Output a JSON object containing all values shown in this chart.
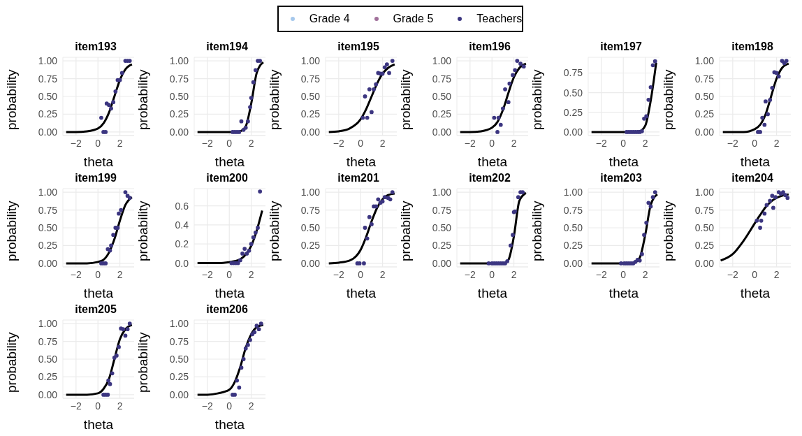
{
  "chart_data": [
    {
      "type": "scatter",
      "title": "item193",
      "xlabel": "theta",
      "ylabel": "probability",
      "xlim": [
        -3.2,
        3.3
      ],
      "xticks": [
        {
          "value": -2,
          "label": "−2"
        },
        {
          "value": 0,
          "label": "0"
        },
        {
          "value": 2,
          "label": "2"
        }
      ],
      "ylim": [
        -0.05,
        1.05
      ],
      "yticks": [
        {
          "value": 0,
          "label": "0.00"
        },
        {
          "value": 0.25,
          "label": "0.25"
        },
        {
          "value": 0.5,
          "label": "0.50"
        },
        {
          "value": 0.75,
          "label": "0.75"
        },
        {
          "value": 1,
          "label": "1.00"
        }
      ],
      "grid": true,
      "legend": "top",
      "series": [
        {
          "name": "Grade 4",
          "color": "#a6c8ec",
          "marker": "circle"
        },
        {
          "name": "Grade 5",
          "color": "#a0709a",
          "marker": "circle"
        },
        {
          "type": "line",
          "marker": "none",
          "color": "#000000",
          "x": [
            -2.9,
            -2,
            -1,
            0,
            0.5,
            1,
            1.5,
            2,
            2.5,
            3.1
          ],
          "values": [
            0,
            0,
            0.01,
            0.05,
            0.12,
            0.27,
            0.5,
            0.73,
            0.88,
            0.95
          ]
        },
        {
          "name": "Teachers",
          "marker": "circle",
          "color": "#3b3580",
          "x": [
            0.3,
            0.5,
            0.7,
            0.8,
            1.0,
            1.2,
            1.4,
            1.6,
            1.8,
            2.0,
            2.2,
            2.5,
            2.7,
            2.9
          ],
          "values": [
            0.2,
            0,
            0,
            0.4,
            0.38,
            0.33,
            0.42,
            0.57,
            0.73,
            0.73,
            0.83,
            1,
            1,
            1
          ]
        }
      ]
    },
    {
      "type": "scatter",
      "title": "item194",
      "xlabel": "theta",
      "ylabel": "probability",
      "xlim": [
        -3.2,
        3.3
      ],
      "xticks": [
        {
          "value": -2,
          "label": "−2"
        },
        {
          "value": 0,
          "label": "0"
        },
        {
          "value": 2,
          "label": "2"
        }
      ],
      "ylim": [
        -0.05,
        1.05
      ],
      "yticks": [
        {
          "value": 0,
          "label": "0.00"
        },
        {
          "value": 0.25,
          "label": "0.25"
        },
        {
          "value": 0.5,
          "label": "0.50"
        },
        {
          "value": 0.75,
          "label": "0.75"
        },
        {
          "value": 1,
          "label": "1.00"
        }
      ],
      "grid": true,
      "series": [
        {
          "type": "line",
          "marker": "none",
          "color": "#000000",
          "x": [
            -2.9,
            -2,
            -1,
            0,
            0.5,
            1,
            1.5,
            2,
            2.5,
            3.1
          ],
          "values": [
            0,
            0,
            0,
            0,
            0,
            0.01,
            0.08,
            0.4,
            0.83,
            0.98
          ]
        },
        {
          "marker": "circle",
          "color": "#3b3580",
          "x": [
            0.3,
            0.5,
            0.7,
            0.9,
            1.1,
            1.3,
            1.5,
            1.7,
            1.9,
            2.0,
            2.2,
            2.4,
            2.6,
            2.8
          ],
          "values": [
            0,
            0,
            0,
            0,
            0.15,
            0.03,
            0.06,
            0.15,
            0.35,
            0.48,
            0.7,
            0.87,
            1,
            1
          ]
        }
      ]
    },
    {
      "type": "scatter",
      "title": "item195",
      "xlabel": "theta",
      "ylabel": "probability",
      "xlim": [
        -3.2,
        3.3
      ],
      "xticks": [
        {
          "value": -2,
          "label": "−2"
        },
        {
          "value": 0,
          "label": "0"
        },
        {
          "value": 2,
          "label": "2"
        }
      ],
      "ylim": [
        -0.05,
        1.05
      ],
      "yticks": [
        {
          "value": 0,
          "label": "0.00"
        },
        {
          "value": 0.25,
          "label": "0.25"
        },
        {
          "value": 0.5,
          "label": "0.50"
        },
        {
          "value": 0.75,
          "label": "0.75"
        },
        {
          "value": 1,
          "label": "1.00"
        }
      ],
      "grid": true,
      "series": [
        {
          "type": "line",
          "marker": "none",
          "color": "#000000",
          "x": [
            -2.9,
            -2,
            -1,
            0,
            0.5,
            1,
            1.5,
            2,
            2.5,
            3.1
          ],
          "values": [
            0,
            0.01,
            0.05,
            0.18,
            0.32,
            0.5,
            0.68,
            0.82,
            0.9,
            0.95
          ]
        },
        {
          "marker": "circle",
          "color": "#3b3580",
          "x": [
            0.2,
            0.4,
            0.6,
            0.8,
            1.0,
            1.2,
            1.4,
            1.6,
            1.8,
            2.0,
            2.2,
            2.4,
            2.6,
            2.9
          ],
          "values": [
            0.2,
            0.5,
            0.2,
            0.6,
            0.28,
            0.6,
            0.67,
            0.83,
            0.82,
            0.82,
            0.91,
            0.95,
            0.83,
            1
          ]
        }
      ]
    },
    {
      "type": "scatter",
      "title": "item196",
      "xlabel": "theta",
      "ylabel": "probability",
      "xlim": [
        -3.2,
        3.3
      ],
      "xticks": [
        {
          "value": -2,
          "label": "−2"
        },
        {
          "value": 0,
          "label": "0"
        },
        {
          "value": 2,
          "label": "2"
        }
      ],
      "ylim": [
        -0.05,
        1.05
      ],
      "yticks": [
        {
          "value": 0,
          "label": "0.00"
        },
        {
          "value": 0.25,
          "label": "0.25"
        },
        {
          "value": 0.5,
          "label": "0.50"
        },
        {
          "value": 0.75,
          "label": "0.75"
        },
        {
          "value": 1,
          "label": "1.00"
        }
      ],
      "grid": true,
      "series": [
        {
          "type": "line",
          "marker": "none",
          "color": "#000000",
          "x": [
            -2.9,
            -2,
            -1,
            0,
            0.5,
            1,
            1.5,
            2,
            2.5,
            3.1
          ],
          "values": [
            0,
            0,
            0.01,
            0.06,
            0.14,
            0.31,
            0.55,
            0.77,
            0.9,
            0.96
          ]
        },
        {
          "marker": "circle",
          "color": "#3b3580",
          "x": [
            0.2,
            0.5,
            0.6,
            0.8,
            1.0,
            1.2,
            1.5,
            1.6,
            1.9,
            2.1,
            2.3,
            2.6,
            2.9
          ],
          "values": [
            0.2,
            0,
            0.2,
            0.1,
            0.33,
            0.6,
            0.42,
            0.68,
            0.8,
            0.87,
            1,
            0.96,
            0.92
          ]
        }
      ]
    },
    {
      "type": "scatter",
      "title": "item197",
      "xlabel": "theta",
      "ylabel": "probability",
      "xlim": [
        -3.2,
        3.3
      ],
      "xticks": [
        {
          "value": -2,
          "label": "−2"
        },
        {
          "value": 0,
          "label": "0"
        },
        {
          "value": 2,
          "label": "2"
        }
      ],
      "ylim": [
        -0.045,
        0.95
      ],
      "yticks": [
        {
          "value": 0,
          "label": "0.00"
        },
        {
          "value": 0.25,
          "label": "0.25"
        },
        {
          "value": 0.5,
          "label": "0.50"
        },
        {
          "value": 0.75,
          "label": "0.75"
        }
      ],
      "grid": true,
      "series": [
        {
          "type": "line",
          "marker": "none",
          "color": "#000000",
          "x": [
            -2.9,
            -2,
            -1,
            0,
            0.5,
            1,
            1.5,
            2,
            2.5,
            3.0
          ],
          "values": [
            0,
            0,
            0,
            0,
            0,
            0,
            0.01,
            0.08,
            0.4,
            0.88
          ]
        },
        {
          "marker": "circle",
          "color": "#3b3580",
          "x": [
            0.3,
            0.5,
            0.7,
            0.9,
            1.1,
            1.3,
            1.5,
            1.7,
            1.9,
            2.1,
            2.3,
            2.5,
            2.7,
            2.9
          ],
          "values": [
            0,
            0,
            0,
            0,
            0,
            0,
            0,
            0.01,
            0.17,
            0.2,
            0.41,
            0.57,
            0.85,
            0.9
          ]
        }
      ]
    },
    {
      "type": "scatter",
      "title": "item198",
      "xlabel": "theta",
      "ylabel": "probability",
      "xlim": [
        -3.2,
        3.3
      ],
      "xticks": [
        {
          "value": -2,
          "label": "−2"
        },
        {
          "value": 0,
          "label": "0"
        },
        {
          "value": 2,
          "label": "2"
        }
      ],
      "ylim": [
        -0.05,
        1.05
      ],
      "yticks": [
        {
          "value": 0,
          "label": "0.00"
        },
        {
          "value": 0.25,
          "label": "0.25"
        },
        {
          "value": 0.5,
          "label": "0.50"
        },
        {
          "value": 0.75,
          "label": "0.75"
        },
        {
          "value": 1,
          "label": "1.00"
        }
      ],
      "grid": true,
      "series": [
        {
          "type": "line",
          "marker": "none",
          "color": "#000000",
          "x": [
            -2.9,
            -2,
            -1,
            0,
            0.5,
            1,
            1.5,
            2,
            2.5,
            3.1
          ],
          "values": [
            0,
            0,
            0,
            0.04,
            0.1,
            0.25,
            0.5,
            0.75,
            0.9,
            0.96
          ]
        },
        {
          "marker": "circle",
          "color": "#3b3580",
          "x": [
            0.3,
            0.5,
            0.7,
            0.9,
            1.0,
            1.2,
            1.4,
            1.6,
            1.8,
            2.0,
            2.2,
            2.5,
            2.7,
            2.9
          ],
          "values": [
            0,
            0,
            0.2,
            0.1,
            0.43,
            0.25,
            0.45,
            0.62,
            0.84,
            0.83,
            0.78,
            1,
            0.97,
            1
          ]
        }
      ]
    },
    {
      "type": "scatter",
      "title": "item199",
      "xlabel": "theta",
      "ylabel": "probability",
      "xlim": [
        -3.2,
        3.3
      ],
      "xticks": [
        {
          "value": -2,
          "label": "−2"
        },
        {
          "value": 0,
          "label": "0"
        },
        {
          "value": 2,
          "label": "2"
        }
      ],
      "ylim": [
        -0.05,
        1.05
      ],
      "yticks": [
        {
          "value": 0,
          "label": "0.00"
        },
        {
          "value": 0.25,
          "label": "0.25"
        },
        {
          "value": 0.5,
          "label": "0.50"
        },
        {
          "value": 0.75,
          "label": "0.75"
        },
        {
          "value": 1,
          "label": "1.00"
        }
      ],
      "grid": true,
      "series": [
        {
          "type": "line",
          "marker": "none",
          "color": "#000000",
          "x": [
            -2.9,
            -2,
            -1,
            0,
            0.5,
            1,
            1.5,
            2,
            2.5,
            3.1
          ],
          "values": [
            0,
            0,
            0,
            0.02,
            0.05,
            0.15,
            0.34,
            0.6,
            0.82,
            0.93
          ]
        },
        {
          "marker": "circle",
          "color": "#3b3580",
          "x": [
            0.3,
            0.5,
            0.7,
            0.9,
            1.1,
            1.2,
            1.4,
            1.6,
            1.8,
            1.9,
            2.1,
            2.5,
            2.7,
            2.9
          ],
          "values": [
            0,
            0,
            0,
            0.2,
            0.18,
            0.25,
            0.4,
            0.5,
            0.5,
            0.7,
            0.75,
            1,
            0.95,
            0.92
          ]
        }
      ]
    },
    {
      "type": "scatter",
      "title": "item200",
      "xlabel": "theta",
      "ylabel": "probability",
      "xlim": [
        -3.2,
        3.3
      ],
      "xticks": [
        {
          "value": -2,
          "label": "−2"
        },
        {
          "value": 0,
          "label": "0"
        },
        {
          "value": 2,
          "label": "2"
        }
      ],
      "ylim": [
        -0.04,
        0.78
      ],
      "yticks": [
        {
          "value": 0,
          "label": "0.0"
        },
        {
          "value": 0.2,
          "label": "0.2"
        },
        {
          "value": 0.4,
          "label": "0.4"
        },
        {
          "value": 0.6,
          "label": "0.6"
        }
      ],
      "grid": true,
      "series": [
        {
          "type": "line",
          "marker": "none",
          "color": "#000000",
          "x": [
            -2.9,
            -2,
            -1,
            0,
            0.5,
            1,
            1.5,
            2,
            2.5,
            3.0
          ],
          "values": [
            0,
            0,
            0,
            0.01,
            0.02,
            0.04,
            0.09,
            0.18,
            0.34,
            0.55
          ]
        },
        {
          "marker": "circle",
          "color": "#3b3580",
          "x": [
            0.2,
            0.4,
            0.6,
            0.8,
            1.0,
            1.2,
            1.4,
            1.6,
            1.8,
            2.0,
            2.2,
            2.4,
            2.6,
            2.8
          ],
          "values": [
            0,
            0,
            0,
            0,
            0.03,
            0.1,
            0.15,
            0.1,
            0.13,
            0.2,
            0.27,
            0.32,
            0.37,
            0.75
          ]
        }
      ]
    },
    {
      "type": "scatter",
      "title": "item201",
      "xlabel": "theta",
      "ylabel": "probability",
      "xlim": [
        -3.2,
        3.3
      ],
      "xticks": [
        {
          "value": -2,
          "label": "−2"
        },
        {
          "value": 0,
          "label": "0"
        },
        {
          "value": 2,
          "label": "2"
        }
      ],
      "ylim": [
        -0.05,
        1.05
      ],
      "yticks": [
        {
          "value": 0,
          "label": "0.00"
        },
        {
          "value": 0.25,
          "label": "0.25"
        },
        {
          "value": 0.5,
          "label": "0.50"
        },
        {
          "value": 0.75,
          "label": "0.75"
        },
        {
          "value": 1,
          "label": "1.00"
        }
      ],
      "grid": true,
      "series": [
        {
          "type": "line",
          "marker": "none",
          "color": "#000000",
          "x": [
            -2.9,
            -2,
            -1,
            0,
            0.5,
            1,
            1.5,
            2,
            2.5,
            3.1
          ],
          "values": [
            0,
            0.01,
            0.04,
            0.19,
            0.37,
            0.59,
            0.78,
            0.9,
            0.96,
            0.98
          ]
        },
        {
          "marker": "circle",
          "color": "#3b3580",
          "x": [
            -0.3,
            -0.1,
            0.3,
            0.4,
            0.6,
            0.8,
            1.0,
            1.2,
            1.4,
            1.6,
            1.8,
            2.0,
            2.2,
            2.5,
            2.7,
            2.9
          ],
          "values": [
            0,
            0,
            0,
            0.5,
            0.35,
            0.65,
            0.55,
            0.8,
            0.8,
            0.9,
            0.85,
            0.87,
            0.93,
            0.92,
            0.9,
            1
          ]
        }
      ]
    },
    {
      "type": "scatter",
      "title": "item202",
      "xlabel": "theta",
      "ylabel": "probability",
      "xlim": [
        -3.2,
        3.3
      ],
      "xticks": [
        {
          "value": -2,
          "label": "−2"
        },
        {
          "value": 0,
          "label": "0"
        },
        {
          "value": 2,
          "label": "2"
        }
      ],
      "ylim": [
        -0.05,
        1.05
      ],
      "yticks": [
        {
          "value": 0,
          "label": "0.00"
        },
        {
          "value": 0.25,
          "label": "0.25"
        },
        {
          "value": 0.5,
          "label": "0.50"
        },
        {
          "value": 0.75,
          "label": "0.75"
        },
        {
          "value": 1,
          "label": "1.00"
        }
      ],
      "grid": true,
      "series": [
        {
          "type": "line",
          "marker": "none",
          "color": "#000000",
          "x": [
            -2.9,
            -2,
            -1,
            0,
            0.5,
            1,
            1.5,
            2,
            2.5,
            3.1
          ],
          "values": [
            0,
            0,
            0,
            0,
            0,
            0,
            0.05,
            0.38,
            0.88,
            0.99
          ]
        },
        {
          "marker": "circle",
          "color": "#3b3580",
          "x": [
            -0.3,
            0,
            0.2,
            0.4,
            0.6,
            0.8,
            1.0,
            1.2,
            1.4,
            1.7,
            1.9,
            2.0,
            2.1,
            2.4,
            2.6,
            2.8
          ],
          "values": [
            0,
            0,
            0,
            0,
            0,
            0,
            0,
            0,
            0.03,
            0.25,
            0.4,
            0.72,
            0.73,
            0.93,
            1,
            1
          ]
        }
      ]
    },
    {
      "type": "scatter",
      "title": "item203",
      "xlabel": "theta",
      "ylabel": "probability",
      "xlim": [
        -3.2,
        3.3
      ],
      "xticks": [
        {
          "value": -2,
          "label": "−2"
        },
        {
          "value": 0,
          "label": "0"
        },
        {
          "value": 2,
          "label": "2"
        }
      ],
      "ylim": [
        -0.05,
        1.05
      ],
      "yticks": [
        {
          "value": 0,
          "label": "0.00"
        },
        {
          "value": 0.25,
          "label": "0.25"
        },
        {
          "value": 0.5,
          "label": "0.50"
        },
        {
          "value": 0.75,
          "label": "0.75"
        },
        {
          "value": 1,
          "label": "1.00"
        }
      ],
      "grid": true,
      "series": [
        {
          "type": "line",
          "marker": "none",
          "color": "#000000",
          "x": [
            -2.9,
            -2,
            -1,
            0,
            0.5,
            1,
            1.5,
            2,
            2.5,
            3.1
          ],
          "values": [
            0,
            0,
            0,
            0,
            0,
            0.01,
            0.08,
            0.4,
            0.82,
            0.97
          ]
        },
        {
          "marker": "circle",
          "color": "#3b3580",
          "x": [
            -0.2,
            0.1,
            0.3,
            0.5,
            0.7,
            0.9,
            1.1,
            1.3,
            1.5,
            1.7,
            1.9,
            2.1,
            2.3,
            2.5,
            2.7,
            2.9
          ],
          "values": [
            0,
            0,
            0,
            0,
            0,
            0,
            0.02,
            0.05,
            0.04,
            0.13,
            0.4,
            0.57,
            0.85,
            0.8,
            0.93,
            1
          ]
        }
      ]
    },
    {
      "type": "scatter",
      "title": "item204",
      "xlabel": "theta",
      "ylabel": "probability",
      "xlim": [
        -3.2,
        3.3
      ],
      "xticks": [
        {
          "value": -2,
          "label": "−2"
        },
        {
          "value": 0,
          "label": "0"
        },
        {
          "value": 2,
          "label": "2"
        }
      ],
      "ylim": [
        -0.05,
        1.05
      ],
      "yticks": [
        {
          "value": 0,
          "label": "0.00"
        },
        {
          "value": 0.25,
          "label": "0.25"
        },
        {
          "value": 0.5,
          "label": "0.50"
        },
        {
          "value": 0.75,
          "label": "0.75"
        },
        {
          "value": 1,
          "label": "1.00"
        }
      ],
      "grid": true,
      "series": [
        {
          "type": "line",
          "marker": "none",
          "color": "#000000",
          "x": [
            -3.1,
            -2,
            -1,
            0,
            0.5,
            1,
            1.5,
            2,
            2.5,
            3.1
          ],
          "values": [
            0.04,
            0.13,
            0.32,
            0.56,
            0.68,
            0.79,
            0.87,
            0.92,
            0.95,
            0.97
          ]
        },
        {
          "marker": "circle",
          "color": "#3b3580",
          "x": [
            0.2,
            0.5,
            0.6,
            0.9,
            1.1,
            1.4,
            1.6,
            1.7,
            1.9,
            2.2,
            2.4,
            2.6,
            2.8,
            3.0
          ],
          "values": [
            0.6,
            0.5,
            0.6,
            0.7,
            0.82,
            0.88,
            0.95,
            0.78,
            0.93,
            1,
            0.98,
            1,
            0.96,
            0.92
          ]
        }
      ]
    },
    {
      "type": "scatter",
      "title": "item205",
      "xlabel": "theta",
      "ylabel": "probability",
      "xlim": [
        -3.2,
        3.3
      ],
      "xticks": [
        {
          "value": -2,
          "label": "−2"
        },
        {
          "value": 0,
          "label": "0"
        },
        {
          "value": 2,
          "label": "2"
        }
      ],
      "ylim": [
        -0.05,
        1.05
      ],
      "yticks": [
        {
          "value": 0,
          "label": "0.00"
        },
        {
          "value": 0.25,
          "label": "0.25"
        },
        {
          "value": 0.5,
          "label": "0.50"
        },
        {
          "value": 0.75,
          "label": "0.75"
        },
        {
          "value": 1,
          "label": "1.00"
        }
      ],
      "grid": true,
      "series": [
        {
          "type": "line",
          "marker": "none",
          "color": "#000000",
          "x": [
            -2.9,
            -2,
            -1,
            0,
            0.5,
            1,
            1.5,
            2,
            2.5,
            3.1
          ],
          "values": [
            0,
            0,
            0,
            0.02,
            0.08,
            0.22,
            0.5,
            0.78,
            0.92,
            0.98
          ]
        },
        {
          "marker": "circle",
          "color": "#3b3580",
          "x": [
            0.5,
            0.7,
            0.9,
            0.95,
            1.1,
            1.3,
            1.5,
            1.7,
            1.9,
            2.1,
            2.3,
            2.5,
            2.7,
            2.9
          ],
          "values": [
            0,
            0,
            0,
            0.2,
            0.15,
            0.3,
            0.52,
            0.55,
            0.67,
            0.93,
            0.92,
            0.83,
            0.92,
            1
          ]
        }
      ]
    },
    {
      "type": "scatter",
      "title": "item206",
      "xlabel": "theta",
      "ylabel": "probability",
      "xlim": [
        -3.2,
        3.3
      ],
      "xticks": [
        {
          "value": -2,
          "label": "−2"
        },
        {
          "value": 0,
          "label": "0"
        },
        {
          "value": 2,
          "label": "2"
        }
      ],
      "ylim": [
        -0.05,
        1.05
      ],
      "yticks": [
        {
          "value": 0,
          "label": "0.00"
        },
        {
          "value": 0.25,
          "label": "0.25"
        },
        {
          "value": 0.5,
          "label": "0.50"
        },
        {
          "value": 0.75,
          "label": "0.75"
        },
        {
          "value": 1,
          "label": "1.00"
        }
      ],
      "grid": true,
      "series": [
        {
          "type": "line",
          "marker": "none",
          "color": "#000000",
          "x": [
            -2.9,
            -2,
            -1,
            0,
            0.5,
            1,
            1.5,
            2,
            2.5,
            3.1
          ],
          "values": [
            0,
            0,
            0.02,
            0.07,
            0.18,
            0.39,
            0.66,
            0.85,
            0.95,
            0.98
          ]
        },
        {
          "marker": "circle",
          "color": "#3b3580",
          "x": [
            0.3,
            0.5,
            0.7,
            0.9,
            1.1,
            1.3,
            1.5,
            1.7,
            1.9,
            2.1,
            2.3,
            2.5,
            2.7,
            2.9
          ],
          "values": [
            0,
            0,
            0.2,
            0.1,
            0.38,
            0.5,
            0.65,
            0.7,
            0.77,
            0.85,
            0.88,
            0.97,
            0.92,
            1
          ]
        }
      ]
    }
  ]
}
